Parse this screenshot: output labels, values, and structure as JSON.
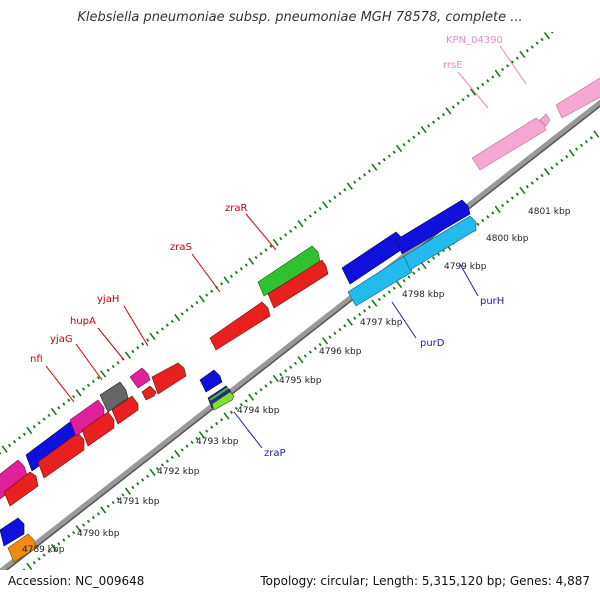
{
  "title": "Klebsiella pneumoniae subsp. pneumoniae MGH 78578, complete ...",
  "footer": {
    "accession": "Accession: NC_009648",
    "summary": "Topology: circular; Length: 5,315,120 bp; Genes: 4,887"
  },
  "colors": {
    "backbone": "#999999",
    "tick": "#1a7a1a",
    "forward_label": "#cc0000",
    "reverse_label": "#1a1acc",
    "faded_label": "#f08ac0"
  },
  "scale_labels": [
    "4789 kbp",
    "4790 kbp",
    "4791 kbp",
    "4792 kbp",
    "4793 kbp",
    "4794 kbp",
    "4795 kbp",
    "4796 kbp",
    "4797 kbp",
    "4798 kbp",
    "4799 kbp",
    "4800 kbp",
    "4801 kbp"
  ],
  "gene_labels": {
    "forward": [
      "nfi",
      "yjaG",
      "hupA",
      "yjaH",
      "zraS",
      "zraR"
    ],
    "reverse": [
      "zraP",
      "purD",
      "purH"
    ],
    "faded": [
      "rrsE",
      "KPN_04390"
    ]
  }
}
